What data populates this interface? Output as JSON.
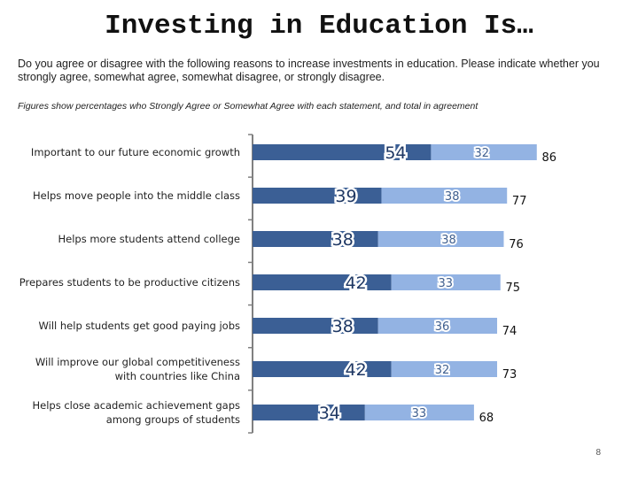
{
  "page": {
    "title": "Investing in Education Is…",
    "question": "Do you agree or disagree with the following reasons to increase investments in education.  Please indicate whether you strongly agree, somewhat agree, somewhat disagree, or strongly disagree.",
    "note": "Figures show percentages who Strongly Agree or Somewhat Agree with each statement, and total in agreement",
    "page_number": "8"
  },
  "colors": {
    "strongly_agree": "#3b5f95",
    "somewhat_agree": "#93b3e3",
    "axis": "#808080"
  },
  "chart_data": {
    "type": "bar",
    "orientation": "horizontal",
    "stacked": true,
    "title": "Investing in Education Is…",
    "categories": [
      [
        "Important to our future economic growth"
      ],
      [
        "Helps move people into the middle class"
      ],
      [
        "Helps more students attend college"
      ],
      [
        "Prepares students to be productive citizens"
      ],
      [
        "Will help students get good paying jobs"
      ],
      [
        "Will improve our global competitiveness",
        "with countries like China"
      ],
      [
        "Helps close academic achievement gaps",
        "among groups of students"
      ]
    ],
    "series": [
      {
        "name": "Strongly Agree",
        "values": [
          54,
          39,
          38,
          42,
          38,
          42,
          34
        ]
      },
      {
        "name": "Somewhat Agree",
        "values": [
          32,
          38,
          38,
          33,
          36,
          32,
          33
        ]
      }
    ],
    "totals": [
      86,
      77,
      76,
      75,
      74,
      73,
      68
    ],
    "xlim": [
      0,
      100
    ],
    "grid": false,
    "legend": "none"
  }
}
